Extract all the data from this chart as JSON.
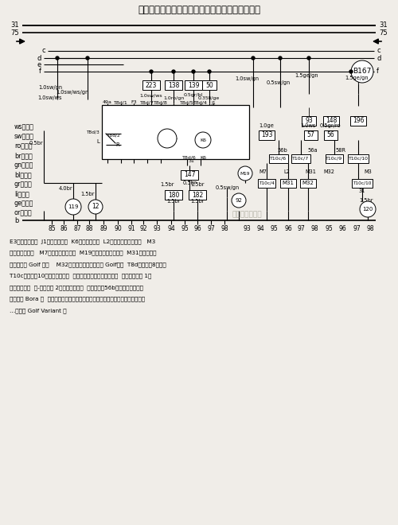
{
  "title": "警告灯开关、闪光继电器、右前大灯、右前转向灯",
  "bg_color": "#f0ede8",
  "footnote_lines": [
    "E3－警告灯开关  J1－闪光继电器  K6－警告指示灯  L2－右大灯双丝灯泡＊   M3",
    "－右驻车灯灯泡   M7－右前转向灯灯泡  M19－右侧侧面转向灯泡  M31－右近光灯",
    "灯泡（仅指 Golf 车）    M32－右远光灯灯泡（仅指 Golf）车  T8d－插头，8孔＊＊",
    "T10c－插头，10孔，在右大灯上  ⑫－接地点，在发动机室左侧  ⑲－接地连接 1，",
    "在大灯线束内  ㉙-接地连接 2，在大灯线束内  ㊿－连接（56b），在车内线束内",
    "＊－仅指 Bora 车  ＊＊－闪光继电器上号码可能与插头号码不同，见故障查寻程序",
    "…－仅指 Golf Variant 车"
  ],
  "legend": [
    "ws＝白色",
    "sw＝黑色",
    "ro＝红色",
    "br＝棕色",
    "gn＝绿色",
    "bl＝蓝色",
    "gr＝灰色",
    "li＝紫色",
    "ge＝黄色",
    "or＝橙色"
  ]
}
